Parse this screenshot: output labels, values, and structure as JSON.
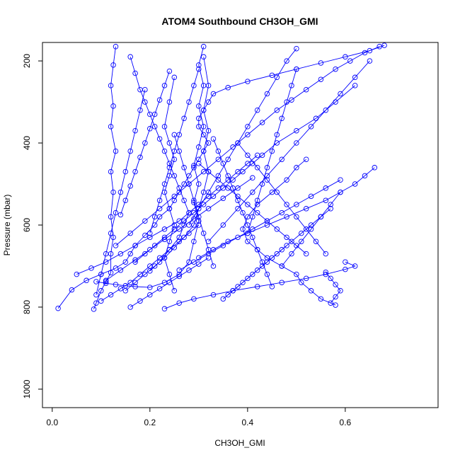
{
  "chart_data": {
    "type": "scatter",
    "title": "ATOM4 Southbound CH3OH_GMI",
    "xlabel": "CH3OH_GMI",
    "ylabel": "Pressure (mbar)",
    "xlim": [
      -0.02,
      0.79
    ],
    "ylim": [
      1045,
      155
    ],
    "y_reversed": true,
    "xticks": [
      0.0,
      0.2,
      0.4,
      0.6
    ],
    "xtick_labels": [
      "0.0",
      "0.2",
      "0.4",
      "0.6"
    ],
    "yticks": [
      200,
      400,
      600,
      800,
      1000
    ],
    "ytick_labels": [
      "200",
      "400",
      "600",
      "800",
      "1000"
    ],
    "grid": false,
    "legend": "none",
    "series_color": "#0000ff",
    "series": [
      {
        "x": [
          0.012,
          0.04,
          0.07,
          0.1,
          0.13,
          0.15,
          0.16,
          0.17,
          0.19,
          0.21,
          0.22,
          0.24,
          0.25,
          0.26,
          0.27,
          0.28,
          0.29,
          0.3,
          0.31,
          0.32,
          0.31,
          0.3,
          0.3,
          0.31,
          0.32,
          0.33,
          0.36,
          0.4,
          0.45,
          0.5,
          0.55,
          0.6,
          0.65,
          0.68
        ],
        "y": [
          803,
          758,
          735,
          720,
          705,
          690,
          670,
          650,
          625,
          600,
          580,
          560,
          540,
          520,
          500,
          480,
          460,
          440,
          420,
          400,
          380,
          360,
          340,
          320,
          300,
          280,
          265,
          250,
          235,
          220,
          205,
          190,
          175,
          162
        ]
      },
      {
        "x": [
          0.085,
          0.09,
          0.1,
          0.11,
          0.12,
          0.12,
          0.125,
          0.12,
          0.125,
          0.12,
          0.13,
          0.12,
          0.125,
          0.12,
          0.125,
          0.13
        ],
        "y": [
          805,
          790,
          760,
          738,
          716,
          670,
          630,
          580,
          520,
          470,
          420,
          360,
          310,
          260,
          210,
          165
        ]
      },
      {
        "x": [
          0.09,
          0.11,
          0.13,
          0.15,
          0.17,
          0.2,
          0.23,
          0.26,
          0.28,
          0.29,
          0.3,
          0.29,
          0.3,
          0.29,
          0.3,
          0.31,
          0.3,
          0.31,
          0.3,
          0.31
        ],
        "y": [
          738,
          742,
          745,
          748,
          750,
          752,
          740,
          720,
          690,
          640,
          590,
          545,
          500,
          455,
          410,
          360,
          310,
          260,
          210,
          165
        ]
      },
      {
        "x": [
          0.23,
          0.26,
          0.29,
          0.33,
          0.37,
          0.42,
          0.47,
          0.52,
          0.56,
          0.6,
          0.62,
          0.6
        ],
        "y": [
          804,
          790,
          780,
          770,
          760,
          750,
          740,
          730,
          720,
          708,
          700,
          690
        ]
      },
      {
        "x": [
          0.15,
          0.17,
          0.19,
          0.21,
          0.23,
          0.25,
          0.27,
          0.29,
          0.3,
          0.31,
          0.32,
          0.31,
          0.32,
          0.31,
          0.32,
          0.31
        ],
        "y": [
          760,
          740,
          720,
          700,
          680,
          655,
          630,
          600,
          560,
          520,
          470,
          420,
          370,
          320,
          260,
          190
        ]
      },
      {
        "x": [
          0.58,
          0.55,
          0.53,
          0.51,
          0.5,
          0.47,
          0.44,
          0.42,
          0.4,
          0.39,
          0.4,
          0.42,
          0.45,
          0.48,
          0.5,
          0.52
        ],
        "y": [
          795,
          780,
          760,
          740,
          720,
          700,
          680,
          660,
          640,
          610,
          580,
          550,
          520,
          490,
          460,
          440
        ]
      },
      {
        "x": [
          0.2,
          0.22,
          0.24,
          0.26,
          0.27,
          0.28,
          0.27,
          0.26,
          0.25,
          0.24,
          0.23,
          0.22,
          0.21,
          0.2,
          0.19,
          0.18,
          0.17,
          0.16
        ],
        "y": [
          712,
          690,
          660,
          630,
          600,
          570,
          540,
          510,
          480,
          450,
          420,
          390,
          360,
          330,
          300,
          270,
          230,
          190
        ]
      },
      {
        "x": [
          0.17,
          0.19,
          0.21,
          0.23,
          0.25,
          0.27,
          0.29,
          0.31,
          0.33,
          0.35,
          0.37,
          0.39,
          0.41,
          0.43,
          0.46,
          0.5,
          0.54,
          0.58,
          0.62
        ],
        "y": [
          690,
          670,
          650,
          630,
          610,
          590,
          570,
          550,
          530,
          510,
          490,
          470,
          450,
          430,
          400,
          370,
          340,
          300,
          260
        ]
      },
      {
        "x": [
          0.05,
          0.08,
          0.11,
          0.14,
          0.17,
          0.2,
          0.23,
          0.26,
          0.28,
          0.3,
          0.32,
          0.34,
          0.36,
          0.38,
          0.4,
          0.42
        ],
        "y": [
          720,
          705,
          690,
          670,
          650,
          630,
          610,
          590,
          570,
          550,
          530,
          510,
          490,
          470,
          450,
          430
        ]
      },
      {
        "x": [
          0.3,
          0.33,
          0.36,
          0.4,
          0.44,
          0.48,
          0.52,
          0.56,
          0.59,
          0.62,
          0.64,
          0.66
        ],
        "y": [
          680,
          660,
          640,
          620,
          600,
          580,
          560,
          540,
          520,
          500,
          480,
          460
        ]
      },
      {
        "x": [
          0.13,
          0.16,
          0.19,
          0.22,
          0.25,
          0.28,
          0.31,
          0.34,
          0.37,
          0.4,
          0.43,
          0.46,
          0.49,
          0.52,
          0.55,
          0.58,
          0.61,
          0.64,
          0.67
        ],
        "y": [
          650,
          620,
          590,
          560,
          530,
          500,
          470,
          440,
          410,
          380,
          350,
          320,
          295,
          270,
          245,
          220,
          200,
          180,
          165
        ]
      },
      {
        "x": [
          0.35,
          0.37,
          0.39,
          0.41,
          0.43,
          0.45,
          0.47,
          0.49,
          0.51,
          0.53,
          0.55,
          0.57
        ],
        "y": [
          780,
          760,
          740,
          720,
          700,
          680,
          660,
          640,
          620,
          600,
          580,
          560
        ]
      },
      {
        "x": [
          0.25,
          0.24,
          0.23,
          0.24,
          0.25,
          0.24,
          0.23,
          0.24,
          0.25,
          0.24,
          0.23,
          0.24,
          0.25
        ],
        "y": [
          760,
          720,
          680,
          640,
          600,
          560,
          520,
          480,
          440,
          400,
          360,
          300,
          240
        ]
      },
      {
        "x": [
          0.1,
          0.12,
          0.14,
          0.16,
          0.18,
          0.2,
          0.22,
          0.24,
          0.26,
          0.28,
          0.3
        ],
        "y": [
          785,
          770,
          755,
          740,
          720,
          700,
          680,
          660,
          640,
          620,
          600
        ]
      },
      {
        "x": [
          0.45,
          0.44,
          0.43,
          0.42,
          0.41,
          0.4,
          0.39,
          0.38,
          0.37,
          0.36,
          0.35,
          0.34,
          0.33
        ],
        "y": [
          750,
          720,
          690,
          660,
          630,
          600,
          570,
          540,
          510,
          480,
          450,
          420,
          390
        ]
      },
      {
        "x": [
          0.52,
          0.5,
          0.48,
          0.46,
          0.44,
          0.42,
          0.4,
          0.38,
          0.36,
          0.34,
          0.32,
          0.3
        ],
        "y": [
          670,
          650,
          630,
          610,
          590,
          570,
          550,
          530,
          510,
          490,
          470,
          450
        ]
      },
      {
        "x": [
          0.2,
          0.21,
          0.22,
          0.23,
          0.24,
          0.25,
          0.26,
          0.27,
          0.28,
          0.29,
          0.3
        ],
        "y": [
          620,
          580,
          540,
          500,
          460,
          420,
          380,
          340,
          300,
          260,
          220
        ]
      },
      {
        "x": [
          0.56,
          0.54,
          0.52,
          0.5,
          0.48,
          0.46,
          0.44,
          0.42,
          0.4,
          0.38
        ],
        "y": [
          670,
          640,
          610,
          580,
          550,
          520,
          490,
          460,
          430,
          400
        ]
      },
      {
        "x": [
          0.14,
          0.15,
          0.16,
          0.17,
          0.18,
          0.19,
          0.2,
          0.21,
          0.22,
          0.23,
          0.24
        ],
        "y": [
          575,
          540,
          505,
          470,
          435,
          400,
          365,
          330,
          295,
          260,
          225
        ]
      },
      {
        "x": [
          0.32,
          0.35,
          0.38,
          0.41,
          0.44,
          0.47,
          0.5,
          0.53,
          0.56,
          0.59,
          0.62,
          0.65
        ],
        "y": [
          640,
          600,
          560,
          520,
          480,
          440,
          400,
          360,
          320,
          280,
          240,
          200
        ]
      },
      {
        "x": [
          0.26,
          0.29,
          0.32,
          0.35,
          0.38,
          0.41,
          0.44,
          0.47,
          0.5,
          0.53,
          0.56,
          0.59
        ],
        "y": [
          710,
          690,
          670,
          650,
          630,
          610,
          590,
          570,
          550,
          530,
          510,
          490
        ]
      },
      {
        "x": [
          0.11,
          0.14,
          0.17,
          0.2,
          0.23,
          0.26,
          0.29,
          0.32,
          0.35,
          0.38,
          0.41
        ],
        "y": [
          735,
          710,
          685,
          660,
          635,
          610,
          585,
          560,
          535,
          510,
          485
        ]
      },
      {
        "x": [
          0.4,
          0.41,
          0.42,
          0.43,
          0.44,
          0.45,
          0.46,
          0.47,
          0.48,
          0.49,
          0.5
        ],
        "y": [
          620,
          580,
          540,
          500,
          460,
          420,
          380,
          340,
          300,
          260,
          220
        ]
      },
      {
        "x": [
          0.09,
          0.1,
          0.11,
          0.12,
          0.13,
          0.14,
          0.15,
          0.16,
          0.17,
          0.18,
          0.19
        ],
        "y": [
          770,
          720,
          670,
          620,
          570,
          520,
          470,
          420,
          370,
          320,
          270
        ]
      },
      {
        "x": [
          0.33,
          0.32,
          0.31,
          0.3,
          0.29,
          0.28,
          0.27,
          0.26,
          0.25
        ],
        "y": [
          700,
          660,
          620,
          580,
          540,
          500,
          460,
          420,
          380
        ]
      },
      {
        "x": [
          0.47,
          0.49,
          0.51,
          0.53,
          0.55,
          0.57,
          0.59
        ],
        "y": [
          700,
          670,
          640,
          610,
          580,
          550,
          520
        ]
      },
      {
        "x": [
          0.28,
          0.3,
          0.32,
          0.34,
          0.36,
          0.38,
          0.4,
          0.42,
          0.44,
          0.46,
          0.48,
          0.5
        ],
        "y": [
          600,
          560,
          520,
          480,
          440,
          400,
          360,
          320,
          280,
          240,
          200,
          170
        ]
      },
      {
        "x": [
          0.16,
          0.18,
          0.2,
          0.22,
          0.24,
          0.26,
          0.28,
          0.3,
          0.32
        ],
        "y": [
          800,
          785,
          770,
          755,
          740,
          725,
          710,
          695,
          680
        ]
      },
      {
        "x": [
          0.36,
          0.38,
          0.4,
          0.42,
          0.44,
          0.46,
          0.48
        ],
        "y": [
          770,
          750,
          730,
          710,
          690,
          670,
          650
        ]
      },
      {
        "x": [
          0.57,
          0.58,
          0.59,
          0.58,
          0.57,
          0.56
        ],
        "y": [
          790,
          775,
          760,
          745,
          730,
          715
        ]
      }
    ]
  }
}
